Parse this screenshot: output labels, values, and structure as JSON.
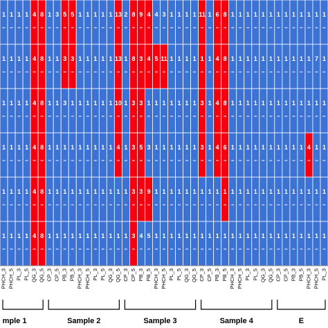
{
  "groups": [
    {
      "label": "mple 1",
      "columns": [
        "PHCH_3",
        "PHCH_5",
        "PL_3",
        "PL_5",
        "QG_3",
        "QG_5"
      ]
    },
    {
      "label": "Sample 2",
      "columns": [
        "CP_3",
        "CP_5",
        "PB_3",
        "PB_5",
        "PHCH_3",
        "PHCH_5",
        "PL_3",
        "PL_5",
        "QG_3",
        "QG_5"
      ]
    },
    {
      "label": "Sample 3",
      "columns": [
        "CP_3",
        "CP_5",
        "PB_3",
        "PB_5",
        "PHCH_3",
        "PHCH_5",
        "PL_3",
        "PL_5",
        "QG_3",
        "QG_5"
      ]
    },
    {
      "label": "Sample 4",
      "columns": [
        "CP_3",
        "CP_5",
        "PB_3",
        "PB_5",
        "PHCH_3",
        "PHCH_5",
        "PL_3",
        "PL_5",
        "QG_3",
        "QG_5"
      ]
    },
    {
      "label": "E",
      "columns": [
        "CP_3",
        "CP_5",
        "PB_3",
        "PB_5",
        "PHCH_3",
        "PHCH_5",
        "PL_3"
      ]
    }
  ],
  "rows": [
    {
      "cells": [
        "1",
        "1",
        "1",
        "1",
        "4",
        "8",
        "1",
        "3",
        "5",
        "5",
        "1",
        "1",
        "1",
        "1",
        "1",
        "13",
        "2",
        "8",
        "9",
        "4",
        "4",
        "3",
        "1",
        "1",
        "1",
        "1",
        "11",
        "1",
        "6",
        "8",
        "1",
        "1",
        "1",
        "1",
        "1",
        "1",
        "1",
        "1",
        "1",
        "1",
        "1",
        "1",
        "1"
      ],
      "red": [
        4,
        5,
        8,
        9,
        15,
        17,
        18,
        19,
        26,
        28,
        29
      ]
    },
    {
      "cells": [
        "1",
        "1",
        "1",
        "1",
        "4",
        "8",
        "1",
        "1",
        "3",
        "3",
        "1",
        "1",
        "1",
        "1",
        "1",
        "13",
        "1",
        "8",
        "3",
        "4",
        "5",
        "11",
        "1",
        "1",
        "1",
        "1",
        "1",
        "1",
        "4",
        "8",
        "1",
        "1",
        "1",
        "1",
        "1",
        "1",
        "1",
        "1",
        "1",
        "1",
        "1",
        "7",
        "1"
      ],
      "red": [
        4,
        5,
        8,
        9,
        15,
        17,
        18,
        19,
        20,
        21,
        26,
        28,
        29
      ]
    },
    {
      "cells": [
        "1",
        "1",
        "1",
        "1",
        "4",
        "8",
        "1",
        "1",
        "3",
        "1",
        "1",
        "1",
        "1",
        "1",
        "1",
        "10",
        "1",
        "3",
        "3",
        "1",
        "1",
        "1",
        "1",
        "1",
        "1",
        "1",
        "3",
        "1",
        "4",
        "8",
        "1",
        "1",
        "1",
        "1",
        "1",
        "1",
        "1",
        "1",
        "1",
        "1",
        "1",
        "1",
        "1"
      ],
      "red": [
        4,
        5,
        15,
        17,
        18,
        26,
        28,
        29
      ]
    },
    {
      "cells": [
        "1",
        "1",
        "1",
        "1",
        "4",
        "8",
        "1",
        "1",
        "1",
        "1",
        "1",
        "1",
        "1",
        "1",
        "1",
        "4",
        "1",
        "3",
        "5",
        "3",
        "1",
        "1",
        "1",
        "1",
        "1",
        "1",
        "3",
        "1",
        "4",
        "6",
        "1",
        "1",
        "1",
        "1",
        "1",
        "1",
        "1",
        "1",
        "1",
        "1",
        "4",
        "1",
        "1"
      ],
      "red": [
        4,
        5,
        15,
        17,
        18,
        26,
        28,
        29,
        40
      ]
    },
    {
      "cells": [
        "1",
        "1",
        "1",
        "1",
        "4",
        "8",
        "1",
        "1",
        "1",
        "1",
        "1",
        "1",
        "1",
        "1",
        "1",
        "1",
        "1",
        "3",
        "3",
        "9",
        "1",
        "1",
        "1",
        "1",
        "1",
        "1",
        "1",
        "1",
        "1",
        "1",
        "1",
        "1",
        "1",
        "1",
        "1",
        "1",
        "1",
        "1",
        "1",
        "1",
        "1",
        "1",
        "1"
      ],
      "red": [
        4,
        5,
        17,
        18,
        19,
        29
      ]
    },
    {
      "cells": [
        "1",
        "1",
        "1",
        "1",
        "4",
        "8",
        "1",
        "1",
        "1",
        "1",
        "1",
        "1",
        "1",
        "1",
        "1",
        "1",
        "1",
        "3",
        "4",
        "5",
        "1",
        "1",
        "1",
        "1",
        "1",
        "1",
        "1",
        "1",
        "1",
        "1",
        "1",
        "1",
        "1",
        "1",
        "1",
        "1",
        "1",
        "1",
        "1",
        "1",
        "1",
        "1",
        "1"
      ],
      "red": [
        4,
        5,
        17
      ]
    }
  ]
}
